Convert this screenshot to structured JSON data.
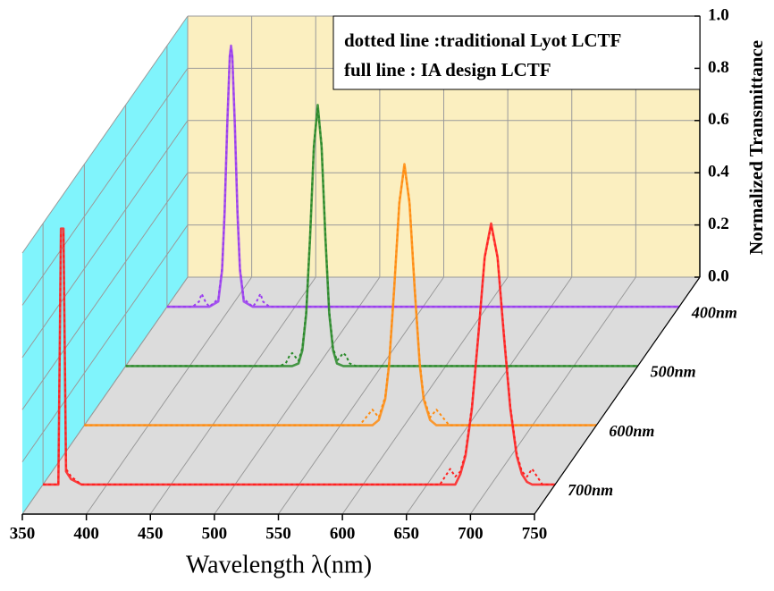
{
  "chart_data": {
    "type": "waterfall",
    "x_label": "Wavelength λ(nm)",
    "y_label": "Normalized Transmittance",
    "annotations": [
      "dotted line :traditional Lyot LCTF",
      "full line : IA design LCTF"
    ],
    "xlim": [
      350,
      750
    ],
    "xticks": [
      350,
      400,
      450,
      500,
      550,
      600,
      650,
      700,
      750
    ],
    "ylim": [
      0,
      1
    ],
    "yticks": [
      {
        "value": 0,
        "label": "0.0"
      },
      0.2,
      0.4,
      0.6,
      0.8,
      {
        "value": 1,
        "label": "1.0"
      }
    ],
    "grid": true,
    "series": [
      {
        "name": "400nm",
        "color": "#9a3cf0",
        "x": [
          350,
          370,
          375,
          377,
          380,
          383,
          390,
          393,
          395,
          397,
          399,
          400,
          401,
          403,
          405,
          407,
          410,
          417,
          420,
          423,
          425,
          430,
          750
        ],
        "values": [
          0,
          0,
          0,
          0,
          0,
          0,
          0.02,
          0.14,
          0.36,
          0.69,
          0.96,
          1,
          0.96,
          0.69,
          0.36,
          0.14,
          0.02,
          0,
          0,
          0,
          0,
          0,
          0
        ],
        "dotted": [
          0,
          0,
          0.02,
          0.05,
          0.02,
          0,
          0.03,
          0.15,
          0.37,
          0.7,
          0.96,
          0.99,
          0.96,
          0.7,
          0.37,
          0.15,
          0.03,
          0,
          0.02,
          0.05,
          0.02,
          0,
          0
        ]
      },
      {
        "name": "500nm",
        "color": "#2a8a2a",
        "x": [
          350,
          470,
          475,
          478,
          480,
          485,
          488,
          491,
          494,
          497,
          500,
          503,
          506,
          509,
          512,
          515,
          520,
          522,
          525,
          530,
          750
        ],
        "values": [
          0,
          0,
          0,
          0,
          0,
          0.01,
          0.06,
          0.2,
          0.49,
          0.84,
          1,
          0.84,
          0.49,
          0.2,
          0.06,
          0.01,
          0,
          0,
          0,
          0,
          0
        ],
        "dotted": [
          0,
          0,
          0.01,
          0.04,
          0.05,
          0.02,
          0.07,
          0.21,
          0.5,
          0.85,
          0.99,
          0.85,
          0.5,
          0.21,
          0.07,
          0.02,
          0.05,
          0.04,
          0.01,
          0,
          0
        ]
      },
      {
        "name": "600nm",
        "color": "#ff8c10",
        "x": [
          350,
          565,
          570,
          575,
          580,
          585,
          588,
          592,
          596,
          600,
          604,
          608,
          612,
          615,
          620,
          625,
          630,
          635,
          750
        ],
        "values": [
          0,
          0,
          0,
          0,
          0.02,
          0.1,
          0.23,
          0.52,
          0.85,
          1,
          0.85,
          0.52,
          0.23,
          0.1,
          0.02,
          0,
          0,
          0,
          0
        ],
        "dotted": [
          0,
          0,
          0.03,
          0.06,
          0.03,
          0.11,
          0.24,
          0.53,
          0.86,
          0.99,
          0.86,
          0.53,
          0.24,
          0.11,
          0.03,
          0.06,
          0.03,
          0,
          0
        ]
      },
      {
        "name": "700nm",
        "color": "#ff2020",
        "x": [
          350,
          362,
          364,
          366,
          368,
          372,
          380,
          660,
          668,
          672,
          676,
          680,
          685,
          690,
          695,
          700,
          705,
          710,
          715,
          720,
          724,
          728,
          732,
          740,
          750
        ],
        "values": [
          0,
          0,
          0.98,
          0.98,
          0.05,
          0.02,
          0,
          0,
          0,
          0,
          0.04,
          0.11,
          0.29,
          0.57,
          0.87,
          1,
          0.87,
          0.57,
          0.29,
          0.11,
          0.04,
          0.01,
          0,
          0,
          0
        ],
        "dotted": [
          0,
          0,
          0.96,
          0.96,
          0.06,
          0.03,
          0,
          0,
          0.06,
          0.03,
          0.05,
          0.12,
          0.3,
          0.58,
          0.87,
          0.99,
          0.87,
          0.58,
          0.3,
          0.12,
          0.05,
          0.03,
          0.06,
          0,
          0
        ]
      }
    ]
  }
}
